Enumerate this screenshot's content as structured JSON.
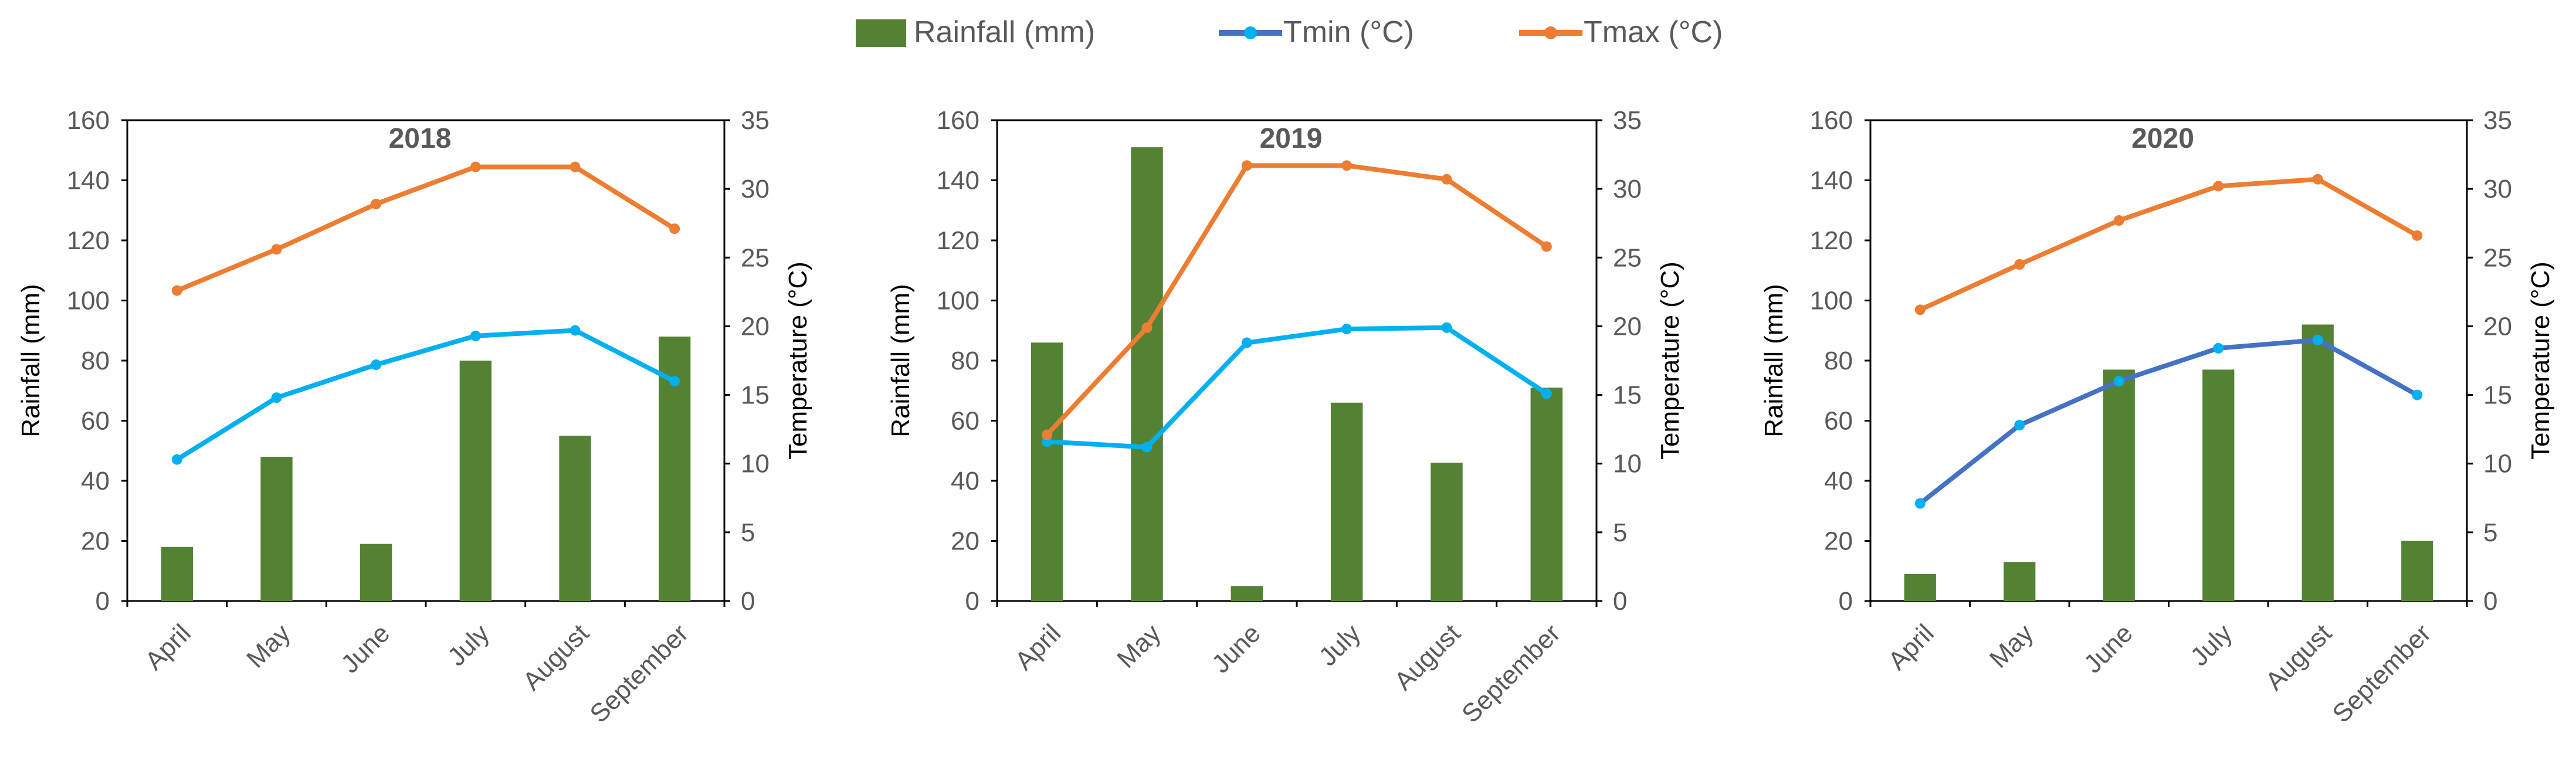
{
  "legend": {
    "items": [
      {
        "label": "Rainfall (mm)",
        "kind": "bar",
        "color": "#548235"
      },
      {
        "label": "Tmin (°C)",
        "kind": "line",
        "color": "#4472C4",
        "marker_color": "#00B0F0"
      },
      {
        "label": "Tmax (°C)",
        "kind": "line",
        "color": "#ED7D31"
      }
    ]
  },
  "chart_data": [
    {
      "type": "bar+line",
      "title": "2018",
      "categories": [
        "April",
        "May",
        "June",
        "July",
        "August",
        "September"
      ],
      "ylabel": "Rainfall (mm)",
      "y2label": "Temperature (°C)",
      "ylim": [
        0,
        160
      ],
      "yticks": [
        "0",
        "20",
        "40",
        "60",
        "80",
        "100",
        "120",
        "140",
        "160"
      ],
      "y2lim": [
        0,
        35
      ],
      "y2ticks": [
        "0",
        "5",
        "10",
        "15",
        "20",
        "25",
        "30",
        "35"
      ],
      "series": [
        {
          "name": "Rainfall (mm)",
          "type": "bar",
          "axis": "left",
          "color": "#548235",
          "values": [
            18,
            48,
            19,
            80,
            55,
            88
          ]
        },
        {
          "name": "Tmin (°C)",
          "type": "line",
          "axis": "right",
          "color": "#00B0F0",
          "values": [
            10.3,
            14.8,
            17.2,
            19.3,
            19.7,
            16.0
          ]
        },
        {
          "name": "Tmax (°C)",
          "type": "line",
          "axis": "right",
          "color": "#ED7D31",
          "values": [
            22.6,
            25.6,
            28.9,
            31.6,
            31.6,
            27.1
          ]
        }
      ]
    },
    {
      "type": "bar+line",
      "title": "2019",
      "categories": [
        "April",
        "May",
        "June",
        "July",
        "August",
        "September"
      ],
      "ylabel": "Rainfall (mm)",
      "y2label": "Temperature (°C)",
      "ylim": [
        0,
        160
      ],
      "yticks": [
        "0",
        "20",
        "40",
        "60",
        "80",
        "100",
        "120",
        "140",
        "160"
      ],
      "y2lim": [
        0,
        35
      ],
      "y2ticks": [
        "0",
        "5",
        "10",
        "15",
        "20",
        "25",
        "30",
        "35"
      ],
      "series": [
        {
          "name": "Rainfall (mm)",
          "type": "bar",
          "axis": "left",
          "color": "#548235",
          "values": [
            86,
            151,
            5,
            66,
            46,
            71
          ]
        },
        {
          "name": "Tmin (°C)",
          "type": "line",
          "axis": "right",
          "color": "#00B0F0",
          "values": [
            11.6,
            11.2,
            18.8,
            19.8,
            19.9,
            15.1
          ]
        },
        {
          "name": "Tmax (°C)",
          "type": "line",
          "axis": "right",
          "color": "#ED7D31",
          "values": [
            12.1,
            19.9,
            31.7,
            31.7,
            30.7,
            25.8
          ]
        }
      ]
    },
    {
      "type": "bar+line",
      "title": "2020",
      "categories": [
        "April",
        "May",
        "June",
        "July",
        "August",
        "September"
      ],
      "ylabel": "Rainfall (mm)",
      "y2label": "Temperature (°C)",
      "ylim": [
        0,
        160
      ],
      "yticks": [
        "0",
        "20",
        "40",
        "60",
        "80",
        "100",
        "120",
        "140",
        "160"
      ],
      "y2lim": [
        0,
        35
      ],
      "y2ticks": [
        "0",
        "5",
        "10",
        "15",
        "20",
        "25",
        "30",
        "35"
      ],
      "series": [
        {
          "name": "Rainfall (mm)",
          "type": "bar",
          "axis": "left",
          "color": "#548235",
          "values": [
            9,
            13,
            77,
            77,
            92,
            20
          ]
        },
        {
          "name": "Tmin (°C)",
          "type": "line",
          "axis": "right",
          "color": "#4472C4",
          "marker_color": "#00B0F0",
          "values": [
            7.1,
            12.8,
            16.0,
            18.4,
            19.0,
            15.0
          ]
        },
        {
          "name": "Tmax (°C)",
          "type": "line",
          "axis": "right",
          "color": "#ED7D31",
          "values": [
            21.2,
            24.5,
            27.7,
            30.2,
            30.7,
            26.6
          ]
        }
      ]
    }
  ]
}
